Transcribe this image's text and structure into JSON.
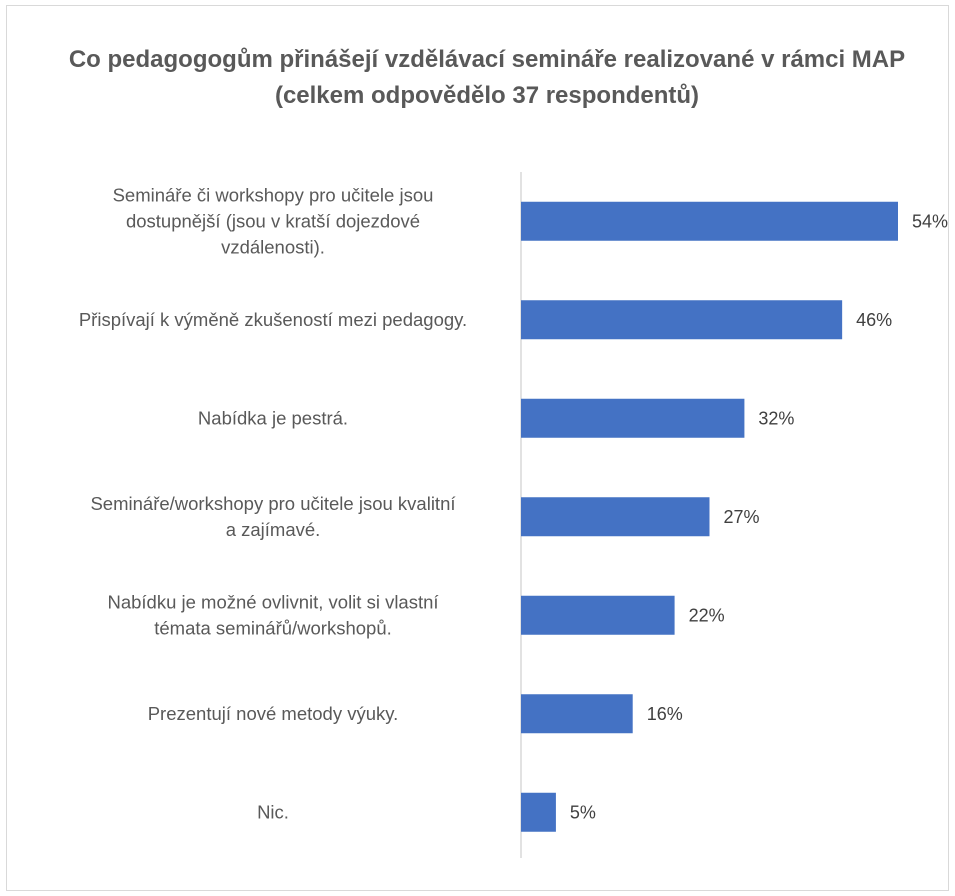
{
  "chart_data": {
    "type": "bar",
    "orientation": "horizontal",
    "title": "Co pedagogogům přinášejí vzdělávací semináře realizované  v rámci MAP (celkem odpovědělo 37 respondentů)",
    "categories": [
      [
        "Semináře či workshopy pro učitele jsou",
        "dostupnější (jsou v kratší dojezdové",
        "vzdálenosti)."
      ],
      [
        "Přispívají k výměně zkušeností mezi pedagogy."
      ],
      [
        "Nabídka je pestrá."
      ],
      [
        "Semináře/workshopy pro učitele jsou kvalitní",
        "a zajímavé."
      ],
      [
        "Nabídku je možné ovlivnit, volit si vlastní",
        "témata seminářů/workshopů."
      ],
      [
        "Prezentují nové metody výuky."
      ],
      [
        "Nic."
      ]
    ],
    "values": [
      54,
      46,
      32,
      27,
      22,
      16,
      5
    ],
    "value_labels": [
      "54%",
      "46%",
      "32%",
      "27%",
      "22%",
      "16%",
      "5%"
    ],
    "unit": "%",
    "xlim": [
      0,
      54
    ],
    "bar_color": "#4472c4",
    "grid": false,
    "legend": "none"
  }
}
